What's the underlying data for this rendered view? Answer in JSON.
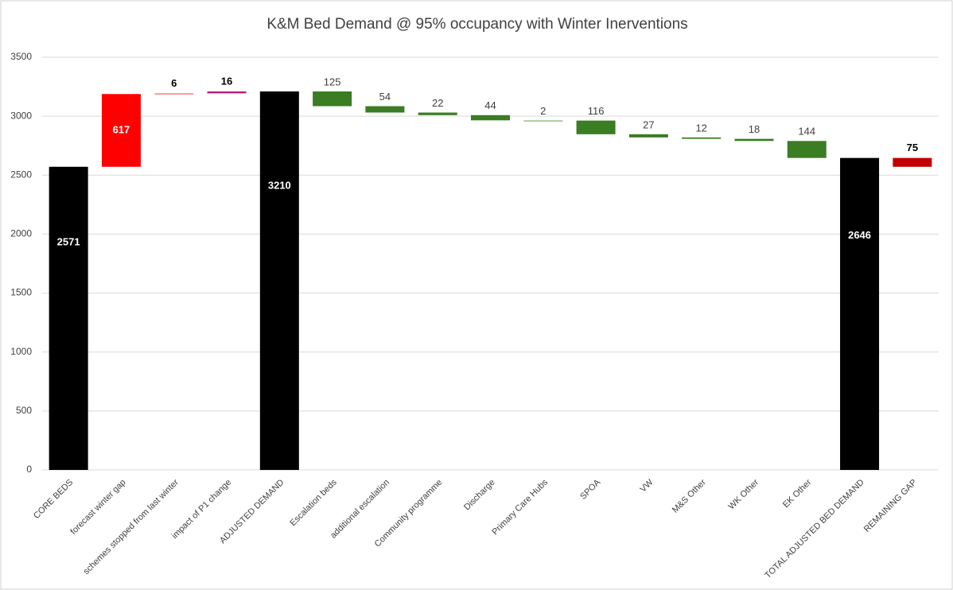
{
  "chart_data": {
    "type": "waterfall",
    "title": "K&M Bed Demand @ 95% occupancy with Winter Inerventions",
    "categories": [
      "CORE BEDS",
      "forecast winter gap",
      "schemes stopped from last winter",
      "impact of P1 change",
      "ADJUSTED DEMAND",
      "Escalation beds",
      "additional escalation",
      "Community programme",
      "Discharge",
      "Primary Care Hubs",
      "SPOA",
      "VW",
      "M&S Other",
      "WK Other",
      "EK Other",
      "TOTAL ADJUSTED BED DEMAND",
      "REMAINING GAP"
    ],
    "values": [
      2571,
      617,
      6,
      16,
      3210,
      125,
      54,
      22,
      44,
      2,
      116,
      27,
      12,
      18,
      144,
      2646,
      75
    ],
    "directions": [
      "total",
      "up",
      "up",
      "up",
      "total",
      "down",
      "down",
      "down",
      "down",
      "down",
      "down",
      "down",
      "down",
      "down",
      "down",
      "total",
      "down"
    ],
    "colors": [
      "#000000",
      "#ff0000",
      "#f08080",
      "#b0207a",
      "#000000",
      "#3a7d22",
      "#3a7d22",
      "#3a7d22",
      "#3a7d22",
      "#8fbf80",
      "#3a7d22",
      "#3a7d22",
      "#3a7d22",
      "#3a7d22",
      "#3a7d22",
      "#000000",
      "#c00000"
    ],
    "ylim": [
      0,
      3500
    ],
    "yticks": [
      0,
      500,
      1000,
      1500,
      2000,
      2500,
      3000,
      3500
    ],
    "grid": true
  }
}
